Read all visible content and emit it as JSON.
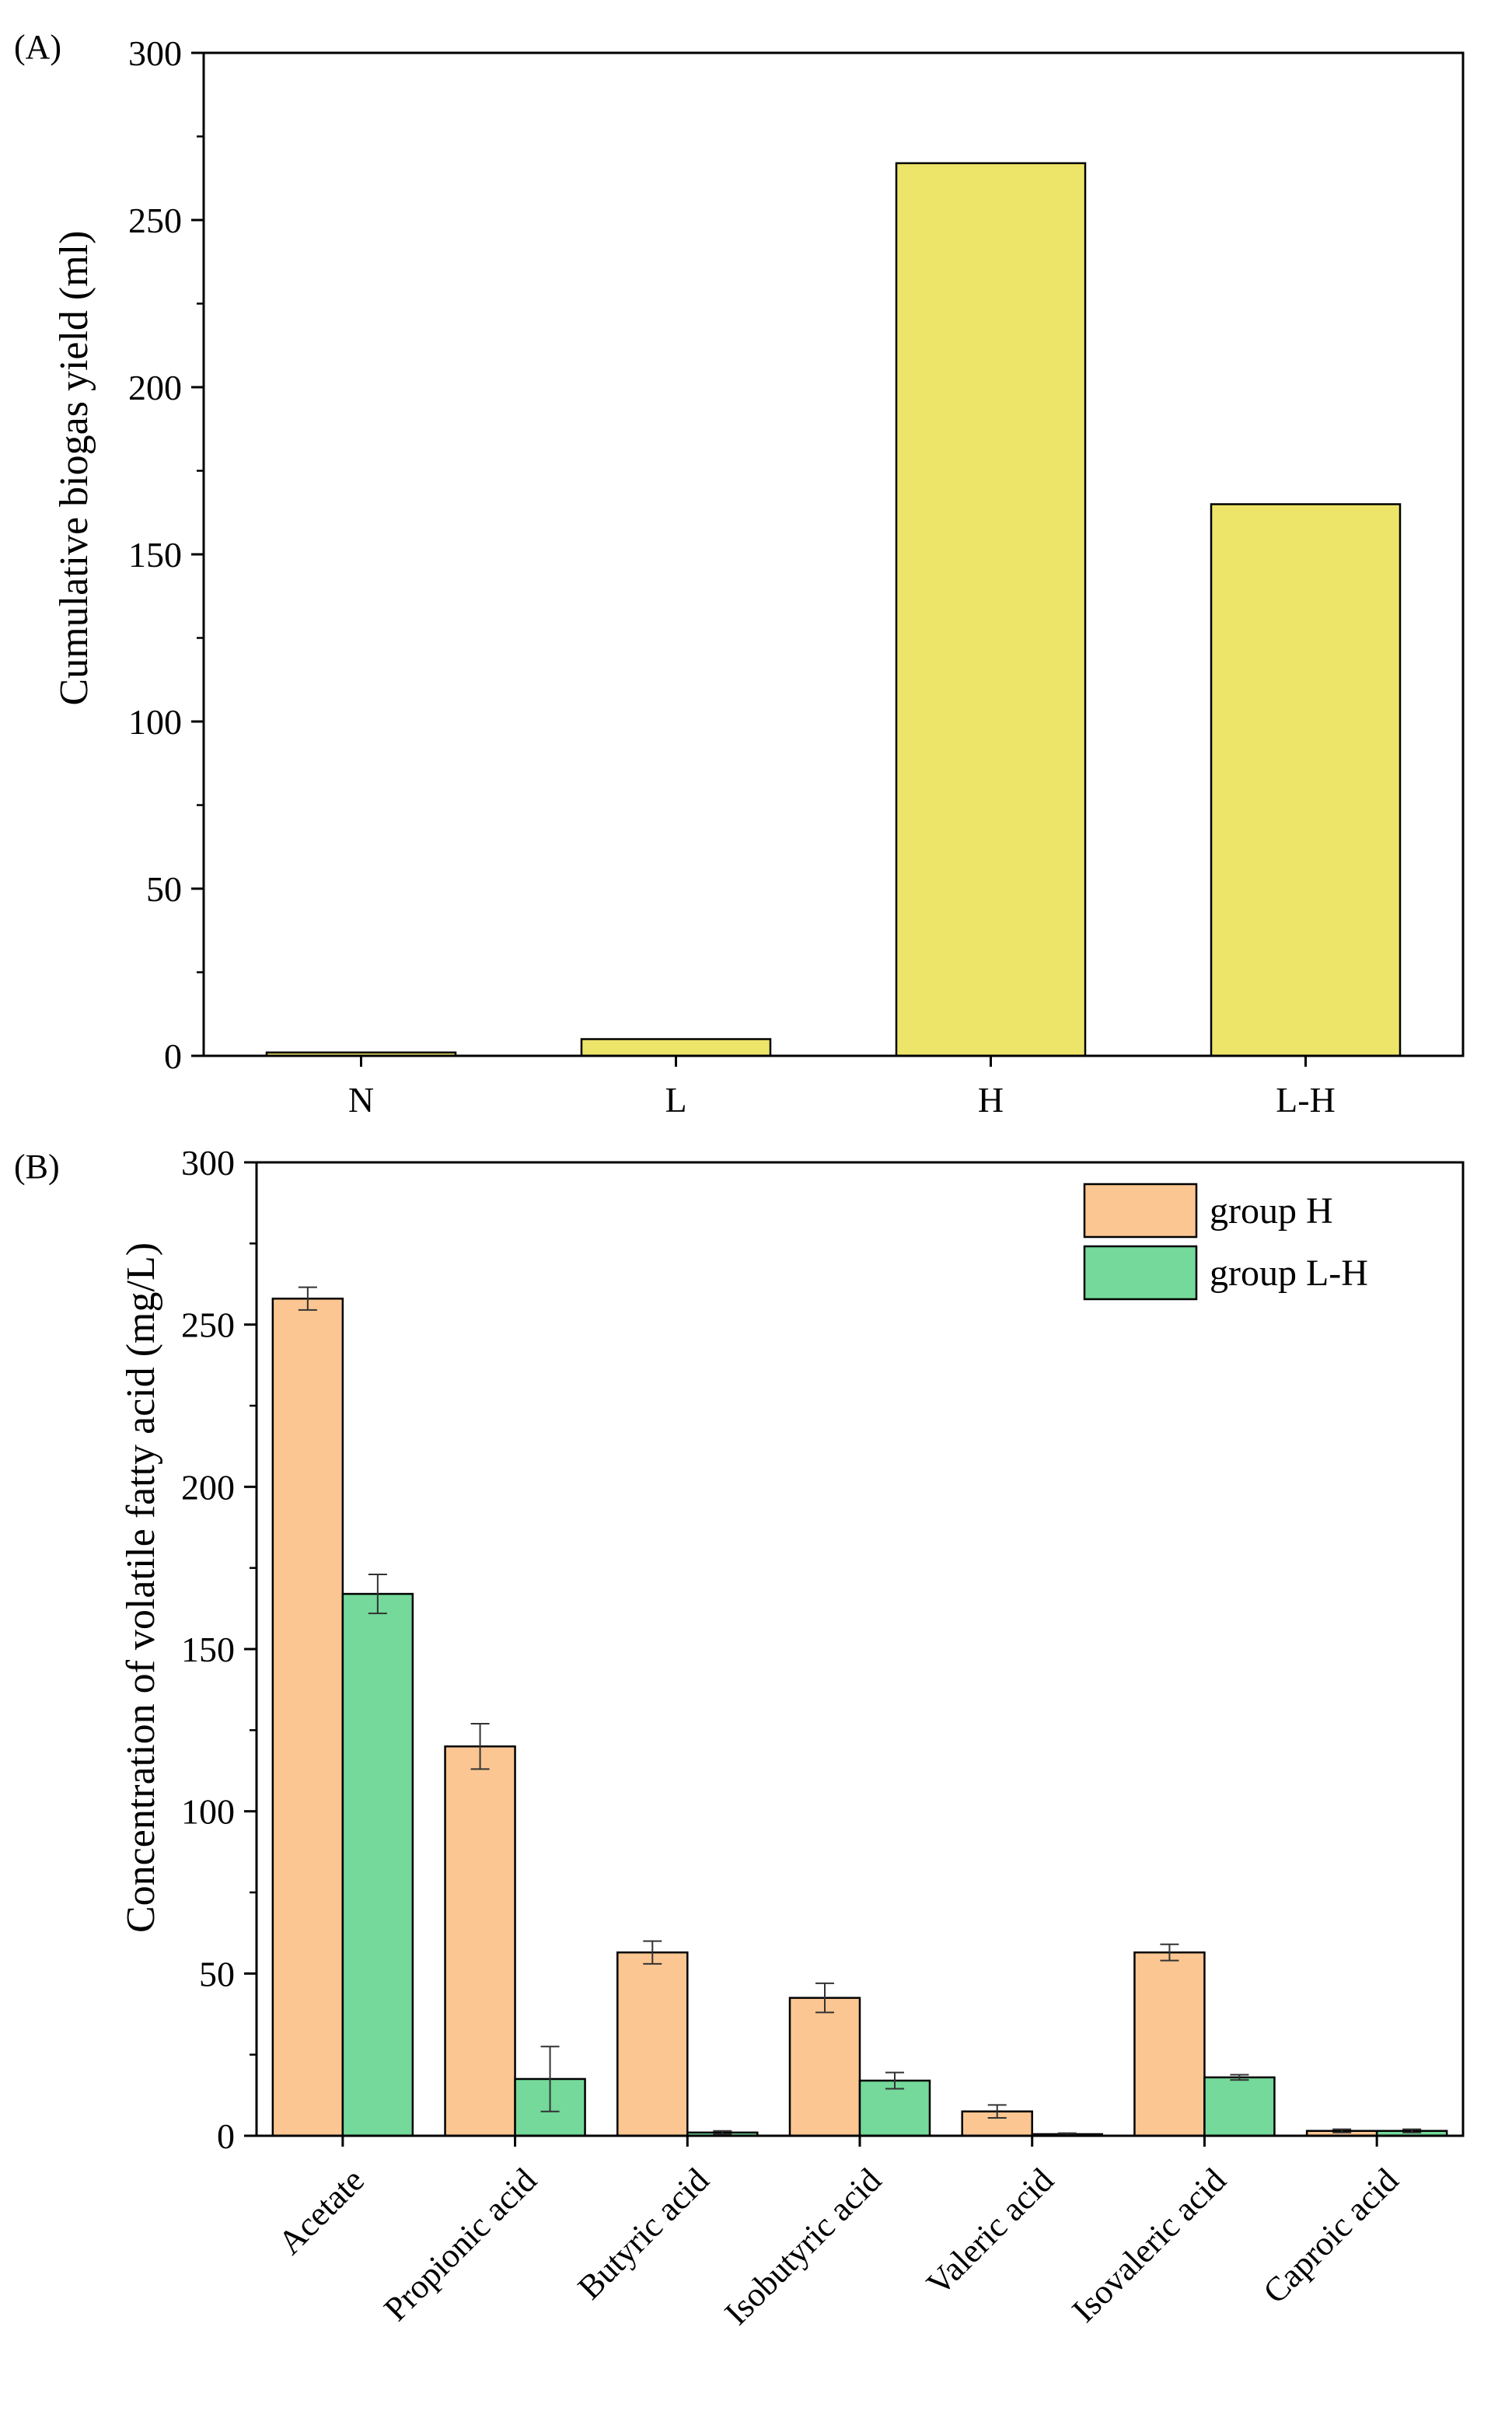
{
  "chart_data": [
    {
      "panel_label": "(A)",
      "type": "bar",
      "title": "",
      "xlabel": "",
      "ylabel": "Cumulative biogas yield (ml)",
      "categories": [
        "N",
        "L",
        "H",
        "L-H"
      ],
      "values": [
        1,
        5,
        267,
        165
      ],
      "ylim": [
        0,
        300
      ],
      "yticks": [
        "0",
        "50",
        "100",
        "150",
        "200",
        "250",
        "300"
      ],
      "grid": false,
      "colors": {
        "bar": "#EDE56A"
      }
    },
    {
      "panel_label": "(B)",
      "type": "bar",
      "title": "",
      "xlabel": "",
      "ylabel": "Concentration of volatile fatty acid (mg/L)",
      "categories": [
        "Acetate",
        "Propionic acid",
        "Butyric acid",
        "Isobutyric acid",
        "Valeric acid",
        "Isovaleric acid",
        "Caproic acid"
      ],
      "series": [
        {
          "name": "group H",
          "color": "#FBC692",
          "values": [
            258,
            120,
            56.5,
            42.5,
            7.5,
            56.5,
            1.5
          ],
          "errors": [
            3.5,
            7,
            3.5,
            4.5,
            2,
            2.5,
            0.5
          ]
        },
        {
          "name": "group L-H",
          "color": "#74D99A",
          "values": [
            167,
            17.5,
            1,
            17,
            0.5,
            18,
            1.5
          ],
          "errors": [
            6,
            10,
            0.5,
            2.5,
            0.3,
            0.8,
            0.5
          ]
        }
      ],
      "ylim": [
        0,
        300
      ],
      "yticks": [
        "0",
        "50",
        "100",
        "150",
        "200",
        "250",
        "300"
      ],
      "legend_position": "top-right",
      "grid": false
    }
  ]
}
